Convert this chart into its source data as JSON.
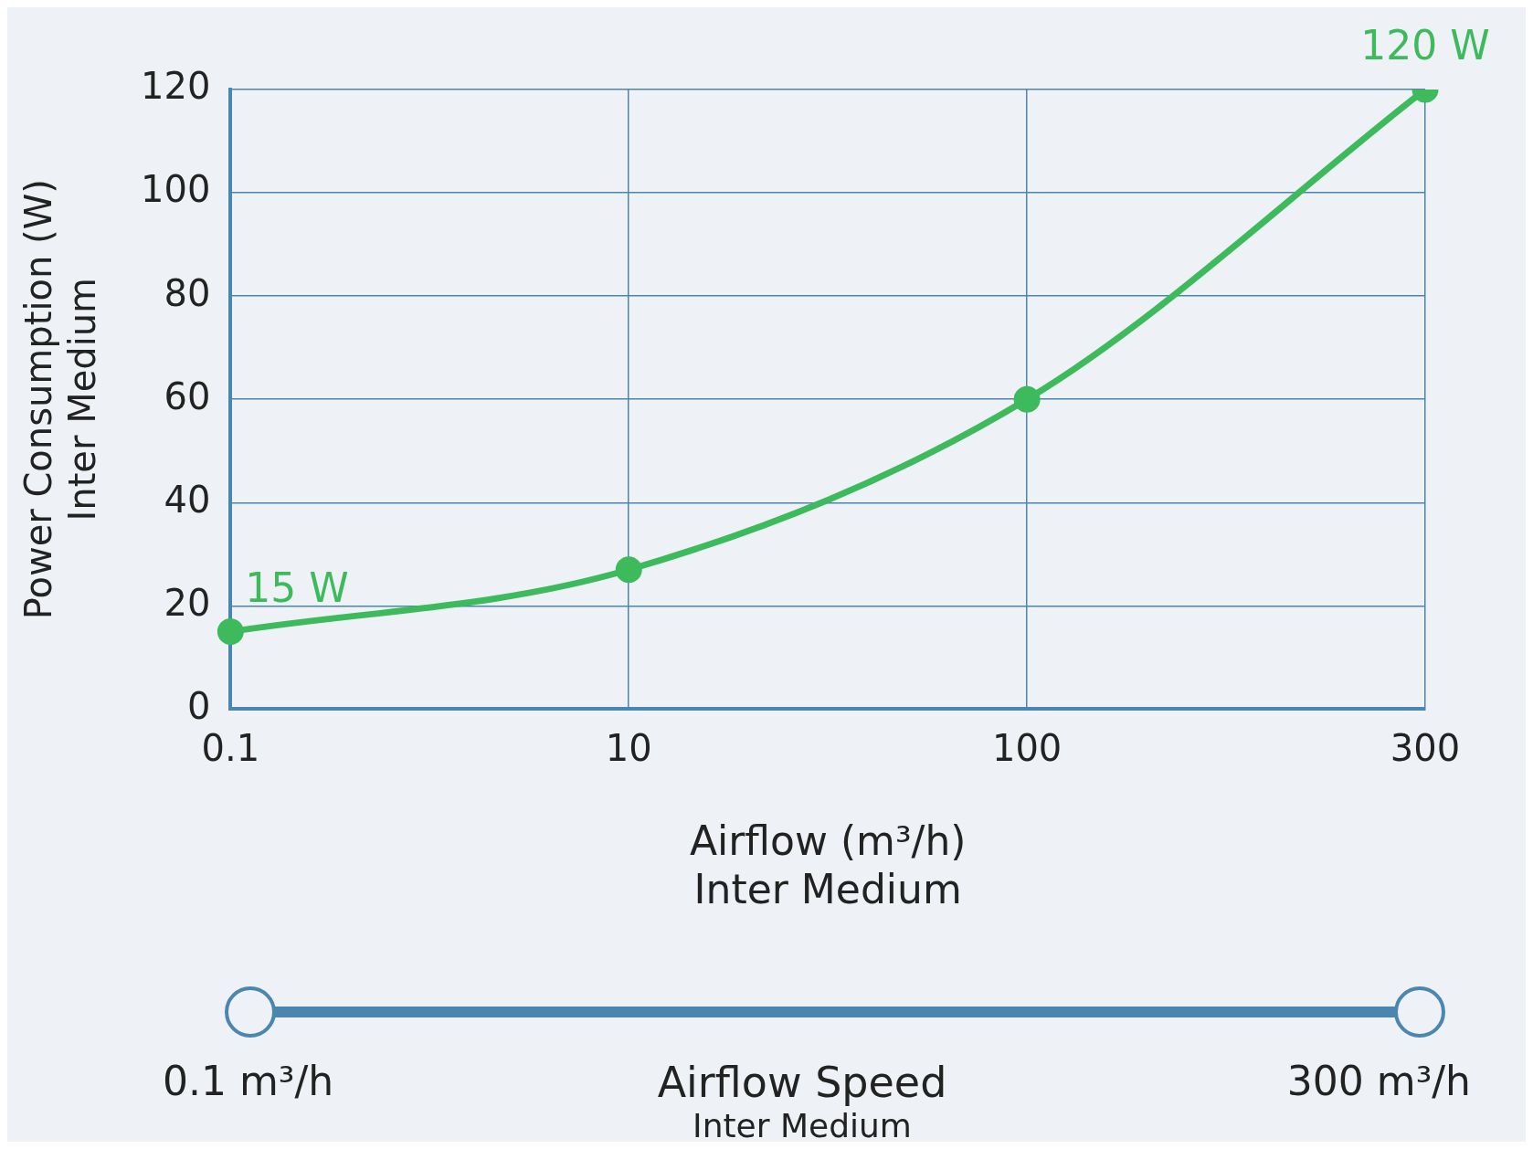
{
  "chart_data": {
    "type": "line",
    "xlabel": "Airflow (m³/h)\nInter Medium",
    "ylabel": "Power Consumption (W)\nInter Medium",
    "categories": [
      "0.1",
      "10",
      "100",
      "300"
    ],
    "series": [
      {
        "color": "#3dba5c",
        "values": [
          15,
          27,
          60,
          120
        ],
        "value_labels": [
          "15 W",
          null,
          null,
          "120 W"
        ]
      }
    ],
    "ylim": [
      0,
      120
    ],
    "yticks": [
      0,
      20,
      40,
      60,
      80,
      100,
      120
    ],
    "grid": true,
    "legend": false,
    "marker": "circle",
    "line_style": "solid",
    "annotations": [
      "0.1 m³/h",
      "Airflow Speed",
      "Inter Medium",
      "300 m³/h"
    ]
  }
}
